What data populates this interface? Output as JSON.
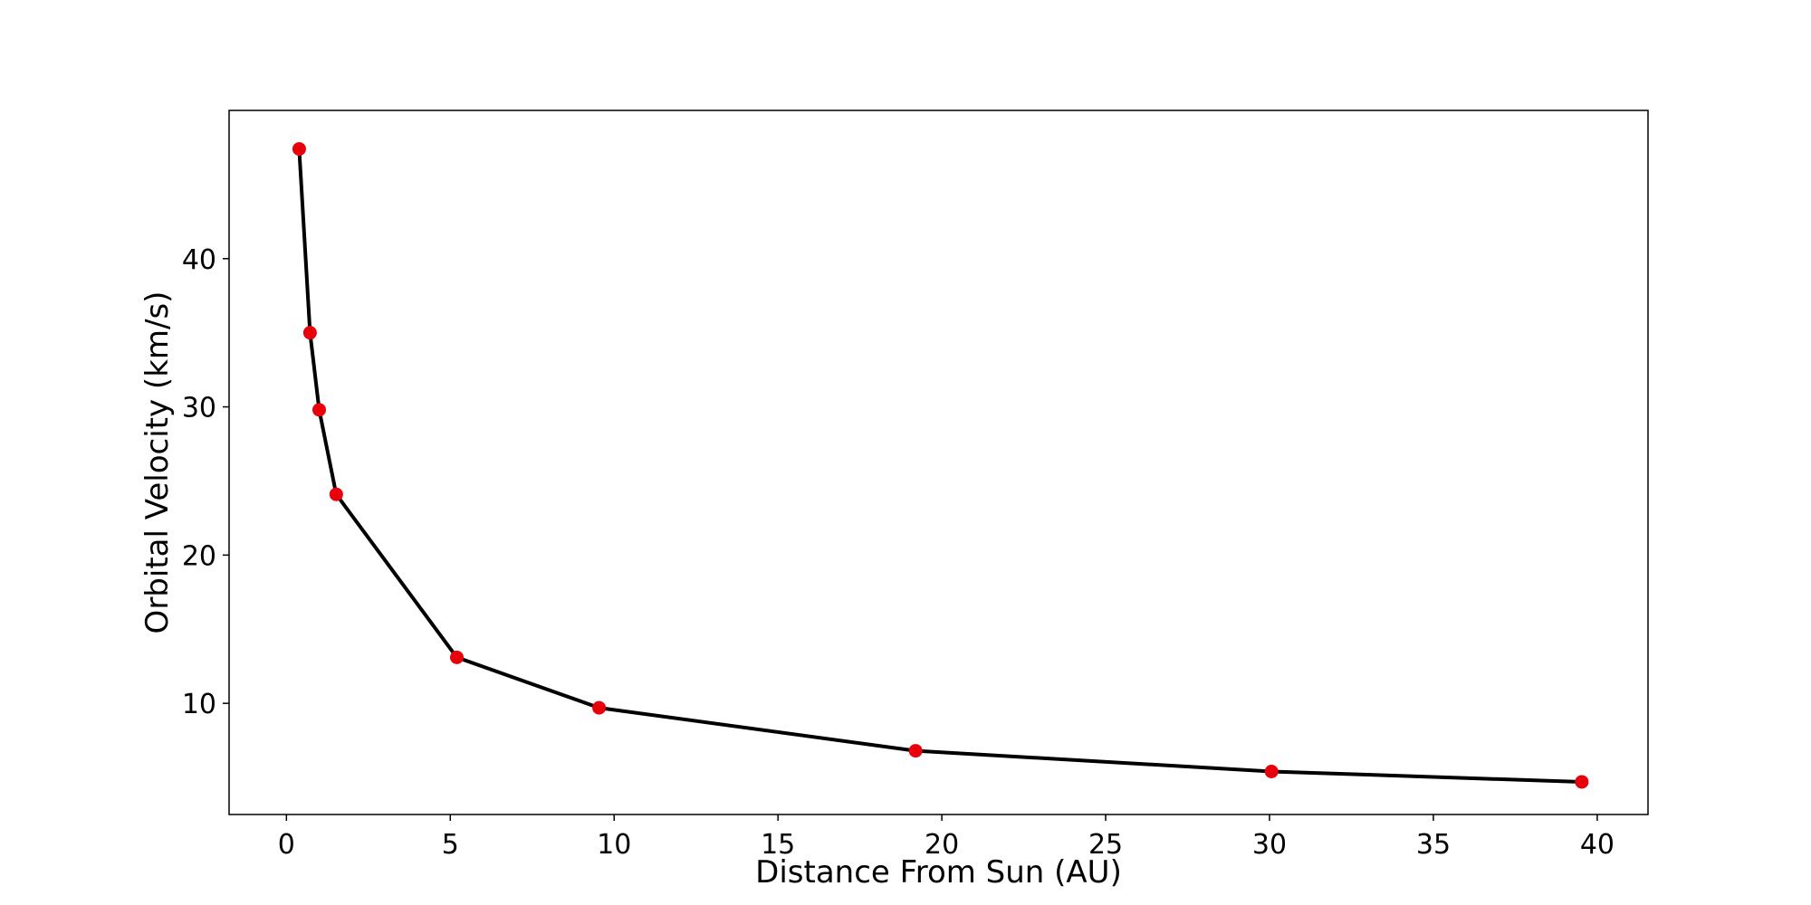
{
  "chart_data": {
    "type": "line",
    "title": "",
    "xlabel": "Distance From Sun (AU)",
    "ylabel": "Orbital Velocity (km/s)",
    "xlim": [
      -1.75,
      41.55
    ],
    "ylim": [
      2.5,
      50.0
    ],
    "xticks": [
      0,
      5,
      10,
      15,
      20,
      25,
      30,
      35,
      40
    ],
    "yticks": [
      10,
      20,
      30,
      40
    ],
    "xtick_labels": [
      "0",
      "5",
      "10",
      "15",
      "20",
      "25",
      "30",
      "35",
      "40"
    ],
    "ytick_labels": [
      "10",
      "20",
      "30",
      "40"
    ],
    "grid": false,
    "line_color": "#000000",
    "marker_color": "#e8000b",
    "x": [
      0.39,
      0.72,
      1.0,
      1.52,
      5.2,
      9.54,
      19.2,
      30.06,
      39.53
    ],
    "y": [
      47.4,
      35.0,
      29.8,
      24.1,
      13.1,
      9.7,
      6.8,
      5.4,
      4.7
    ]
  }
}
